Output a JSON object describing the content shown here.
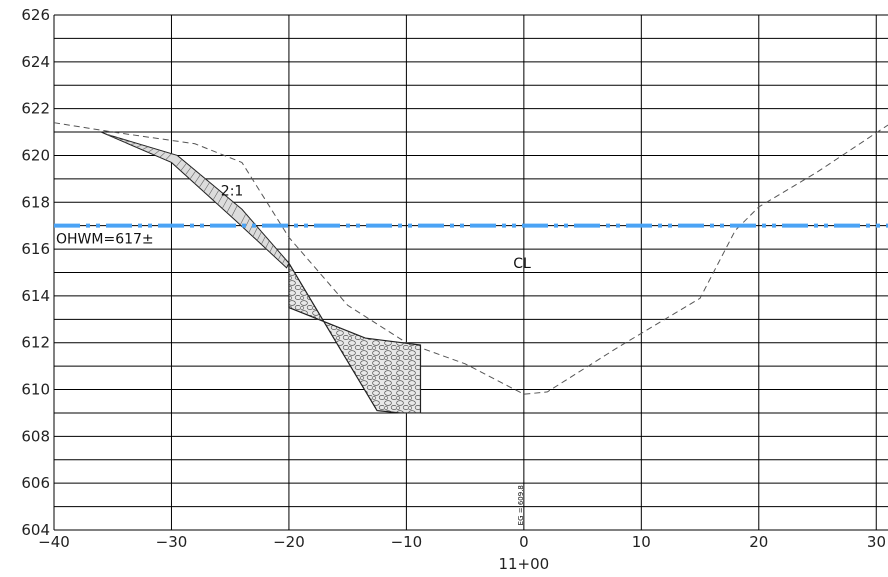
{
  "chart_data": {
    "type": "line",
    "x_range": [
      -40,
      31
    ],
    "y_range": [
      604,
      626
    ],
    "x_ticks": [
      -40,
      -30,
      -20,
      -10,
      0,
      10,
      20,
      30
    ],
    "x_tick_labels": [
      "−40",
      "−30",
      "−20",
      "−10",
      "0",
      "10",
      "20",
      "30"
    ],
    "y_ticks": [
      604,
      606,
      608,
      610,
      612,
      614,
      616,
      618,
      620,
      622,
      624,
      626
    ],
    "y_tick_labels": [
      "604",
      "606",
      "608",
      "610",
      "612",
      "614",
      "616",
      "618",
      "620",
      "622",
      "624",
      "626"
    ],
    "y_minor_grid_step": 1,
    "station_label": "11+00",
    "existing_ground": {
      "x": [
        -40,
        -35,
        -28,
        -24,
        -20,
        -15,
        -10,
        -5,
        0,
        2,
        8,
        15,
        18,
        20,
        25,
        31
      ],
      "y": [
        621.4,
        621.0,
        620.5,
        619.7,
        616.5,
        613.6,
        612.0,
        611.1,
        609.8,
        609.9,
        611.8,
        613.9,
        616.8,
        617.8,
        619.3,
        621.3
      ],
      "style": "dashed"
    },
    "proposed_slope": {
      "x": [
        -35.5,
        -29.5,
        -24,
        -20
      ],
      "y": [
        620.9,
        620.0,
        617.7,
        615.4
      ],
      "x_lower": [
        -36,
        -30,
        -24.5,
        -20.2
      ],
      "y_lower": [
        621.0,
        619.7,
        617.2,
        615.2
      ]
    },
    "riprap": {
      "x": [
        -20,
        -20,
        -13.5,
        -8.8,
        -8.8,
        -10.5,
        -12.5
      ],
      "y": [
        615.4,
        613.5,
        612.2,
        611.9,
        609.0,
        609.0,
        609.1
      ]
    },
    "ohwm_elevation": 617,
    "ohwm_label": "OHWM=617±",
    "ohwm_color": "#4aa3f5",
    "slope_label": "2:1",
    "centerline_label": "CL",
    "eg_label": "EG = 609.8"
  }
}
